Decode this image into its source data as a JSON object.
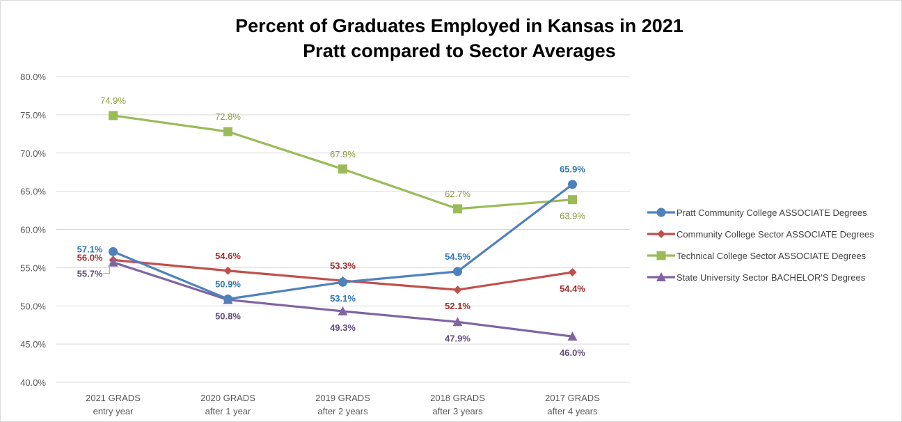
{
  "chart_data": {
    "type": "line",
    "title": [
      "Percent of Graduates Employed in Kansas in 2021",
      "Pratt compared to Sector Averages"
    ],
    "categories": [
      [
        "2021 GRADS",
        "entry year"
      ],
      [
        "2020 GRADS",
        "after 1 year"
      ],
      [
        "2019 GRADS",
        "after 2 years"
      ],
      [
        "2018 GRADS",
        "after 3 years"
      ],
      [
        "2017 GRADS",
        "after 4 years"
      ]
    ],
    "ylim": [
      40,
      80
    ],
    "ytick_step": 5,
    "ytick_labels": [
      "40.0%",
      "45.0%",
      "50.0%",
      "55.0%",
      "60.0%",
      "65.0%",
      "70.0%",
      "75.0%",
      "80.0%"
    ],
    "grid": true,
    "legend_position": "right",
    "series": [
      {
        "name": "Pratt Community College ASSOCIATE Degrees",
        "values": [
          57.1,
          50.9,
          53.1,
          54.5,
          65.9
        ],
        "labels": [
          "57.1%",
          "50.9%",
          "53.1%",
          "54.5%",
          "65.9%"
        ],
        "label_positions": [
          "left",
          "above",
          "below",
          "above",
          "above"
        ],
        "color": "#4f81bd",
        "label_color": "#2e75b6",
        "marker": "circle",
        "bold_labels": true
      },
      {
        "name": "Community College Sector ASSOCIATE Degrees",
        "values": [
          56.0,
          54.6,
          53.3,
          52.1,
          54.4
        ],
        "labels": [
          "56.0%",
          "54.6%",
          "53.3%",
          "52.1%",
          "54.4%"
        ],
        "label_positions": [
          "left",
          "above",
          "above",
          "below",
          "below"
        ],
        "color": "#c0504d",
        "label_color": "#a52a2a",
        "marker": "diamond",
        "bold_labels": true
      },
      {
        "name": "Technical College Sector ASSOCIATE Degrees",
        "values": [
          74.9,
          72.8,
          67.9,
          62.7,
          63.9
        ],
        "labels": [
          "74.9%",
          "72.8%",
          "67.9%",
          "62.7%",
          "63.9%"
        ],
        "label_positions": [
          "above",
          "above",
          "above",
          "above",
          "below"
        ],
        "color": "#9bbb59",
        "label_color": "#8a9a3c",
        "marker": "square",
        "bold_labels": false
      },
      {
        "name": "State University Sector BACHELOR'S Degrees",
        "values": [
          55.7,
          50.8,
          49.3,
          47.9,
          46.0
        ],
        "labels": [
          "55.7%",
          "50.8%",
          "49.3%",
          "47.9%",
          "46.0%"
        ],
        "label_positions": [
          "left-callout",
          "below",
          "below",
          "below",
          "below"
        ],
        "color": "#8064a2",
        "label_color": "#604a7b",
        "marker": "triangle",
        "bold_labels": true
      }
    ]
  }
}
